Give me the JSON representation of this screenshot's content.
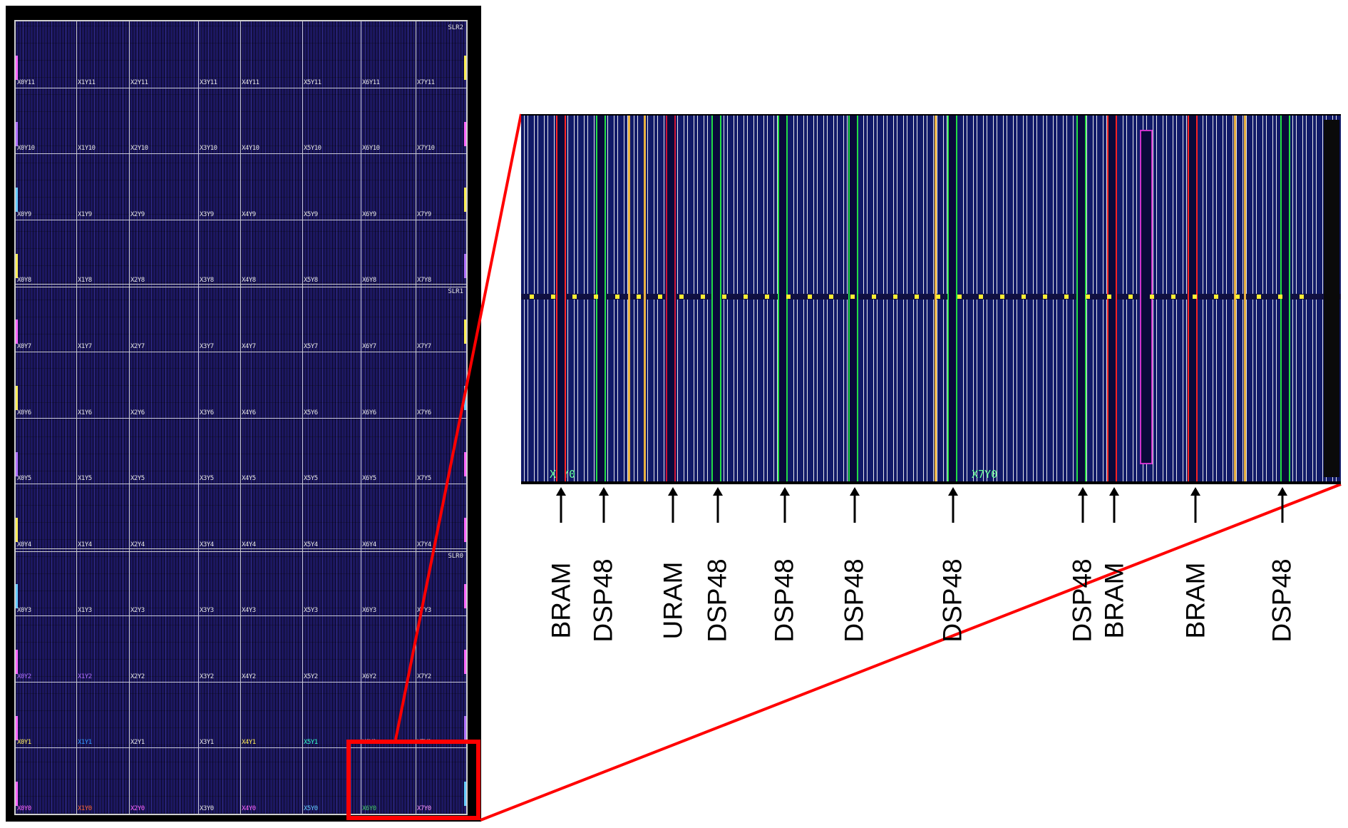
{
  "device": {
    "slr_labels": [
      "SLR2",
      "SLR1",
      "SLR0"
    ],
    "rows": [
      [
        "X0Y11",
        "X1Y11",
        "X2Y11",
        "X3Y11",
        "X4Y11",
        "X5Y11",
        "X6Y11",
        "X7Y11"
      ],
      [
        "X0Y10",
        "X1Y10",
        "X2Y10",
        "X3Y10",
        "X4Y10",
        "X5Y10",
        "X6Y10",
        "X7Y10"
      ],
      [
        "X0Y9",
        "X1Y9",
        "X2Y9",
        "X3Y9",
        "X4Y9",
        "X5Y9",
        "X6Y9",
        "X7Y9"
      ],
      [
        "X0Y8",
        "X1Y8",
        "X2Y8",
        "X3Y8",
        "X4Y8",
        "X5Y8",
        "X6Y8",
        "X7Y8"
      ],
      [
        "X0Y7",
        "X1Y7",
        "X2Y7",
        "X3Y7",
        "X4Y7",
        "X5Y7",
        "X6Y7",
        "X7Y7"
      ],
      [
        "X0Y6",
        "X1Y6",
        "X2Y6",
        "X3Y6",
        "X4Y6",
        "X5Y6",
        "X6Y6",
        "X7Y6"
      ],
      [
        "X0Y5",
        "X1Y5",
        "X2Y5",
        "X3Y5",
        "X4Y5",
        "X5Y5",
        "X6Y5",
        "X7Y5"
      ],
      [
        "X0Y4",
        "X1Y4",
        "X2Y4",
        "X3Y4",
        "X4Y4",
        "X5Y4",
        "X6Y4",
        "X7Y4"
      ],
      [
        "X0Y3",
        "X1Y3",
        "X2Y3",
        "X3Y3",
        "X4Y3",
        "X5Y3",
        "X6Y3",
        "X7Y3"
      ],
      [
        "X0Y2",
        "X1Y2",
        "X2Y2",
        "X3Y2",
        "X4Y2",
        "X5Y2",
        "X6Y2",
        "X7Y2"
      ],
      [
        "X0Y1",
        "X1Y1",
        "X2Y1",
        "X3Y1",
        "X4Y1",
        "X5Y1",
        "X6Y1",
        "X7Y1"
      ],
      [
        "X0Y0",
        "X1Y0",
        "X2Y0",
        "X3Y0",
        "X4Y0",
        "X5Y0",
        "X6Y0",
        "X7Y0"
      ]
    ],
    "label_colors": {
      "X0Y2": "#b070ff",
      "X1Y2": "#b070ff",
      "X0Y1": "#ffee55",
      "X1Y1": "#3399ff",
      "X4Y1": "#ffee55",
      "X5Y1": "#33ffcc",
      "X0Y0": "#ff66ff",
      "X1Y0": "#ff6633",
      "X2Y0": "#ff66ff",
      "X4Y0": "#ff66ff",
      "X5Y0": "#66ccff",
      "X6Y0": "#44cc66",
      "X7Y0": "#ff99ff"
    },
    "highlight_color": "#ff0000"
  },
  "zoom": {
    "region_labels": [
      "X6Y0",
      "X7Y0"
    ]
  },
  "resources": [
    "BRAM",
    "DSP48",
    "URAM",
    "DSP48",
    "DSP48",
    "DSP48",
    "DSP48",
    "DSP48",
    "BRAM",
    "BRAM",
    "DSP48"
  ]
}
